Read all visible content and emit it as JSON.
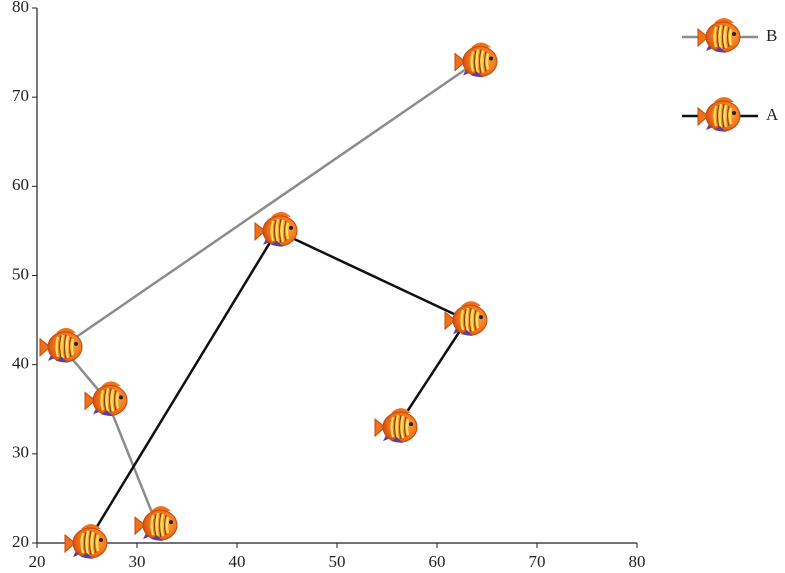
{
  "chart_data": {
    "type": "line",
    "series": [
      {
        "name": "B",
        "color": "#8c8c8c",
        "x": [
          32,
          27,
          22.5,
          64
        ],
        "values": [
          22,
          36,
          42,
          74
        ]
      },
      {
        "name": "A",
        "color": "#111111",
        "x": [
          25,
          44,
          63,
          56
        ],
        "values": [
          20,
          55,
          45,
          33
        ]
      }
    ],
    "xlim": [
      20,
      80
    ],
    "xticks": [
      20,
      30,
      40,
      50,
      60,
      70,
      80
    ],
    "ylim": [
      20,
      80
    ],
    "yticks": [
      20,
      30,
      40,
      50,
      60,
      70,
      80
    ],
    "legend": "right"
  }
}
